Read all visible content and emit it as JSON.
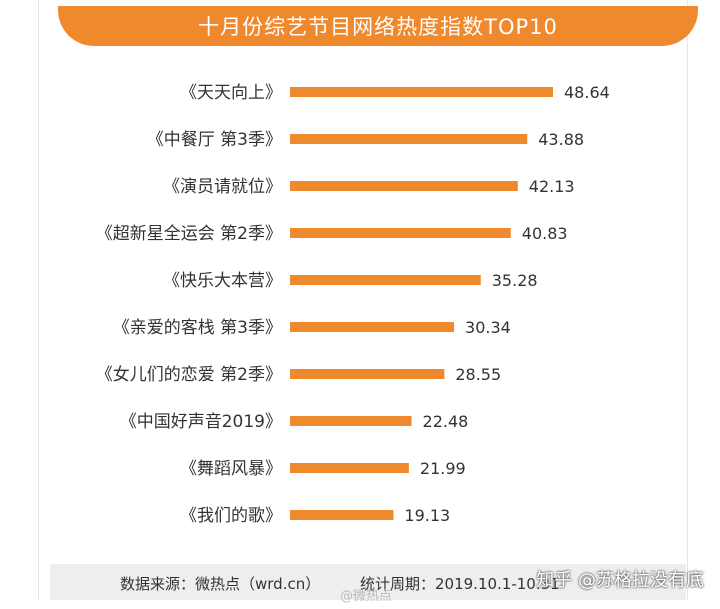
{
  "chart_data": {
    "type": "bar",
    "orientation": "horizontal",
    "title": "十月份综艺节目网络热度指数TOP10",
    "categories": [
      "《天天向上》",
      "《中餐厅 第3季》",
      "《演员请就位》",
      "《超新星全运会 第2季》",
      "《快乐大本营》",
      "《亲爱的客栈 第3季》",
      "《女儿们的恋爱 第2季》",
      "《中国好声音2019》",
      "《舞蹈风暴》",
      "《我们的歌》"
    ],
    "values": [
      48.64,
      43.88,
      42.13,
      40.83,
      35.28,
      30.34,
      28.55,
      22.48,
      21.99,
      19.13
    ],
    "value_labels": [
      "48.64",
      "43.88",
      "42.13",
      "40.83",
      "35.28",
      "30.34",
      "28.55",
      "22.48",
      "21.99",
      "19.13"
    ],
    "xlim": [
      0,
      48.64
    ],
    "grid": false,
    "legend": "none",
    "bar_color": "#F0892E"
  },
  "colors": {
    "accent": "#F0892E",
    "title_text": "#FFFFFF",
    "footer_bg": "#EEEEEE"
  },
  "footer": {
    "source": "数据来源：微热点（wrd.cn）",
    "period": "统计周期：2019.10.1-10.31"
  },
  "watermarks": {
    "zhihu": "知乎 @苏格拉没有底",
    "weibo": "@微热点"
  }
}
